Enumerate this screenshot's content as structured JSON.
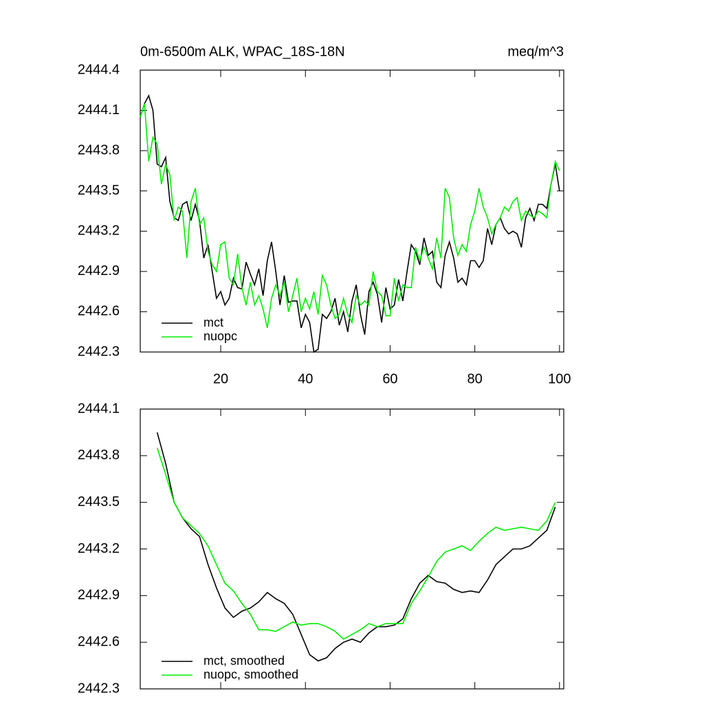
{
  "chart_data": [
    {
      "type": "line",
      "left_title": "0m-6500m ALK, WPAC_18S-18N",
      "right_title": "meq/m^3",
      "x": [
        1,
        2,
        3,
        4,
        5,
        6,
        7,
        8,
        9,
        10,
        11,
        12,
        13,
        14,
        15,
        16,
        17,
        18,
        19,
        20,
        21,
        22,
        23,
        24,
        25,
        26,
        27,
        28,
        29,
        30,
        31,
        32,
        33,
        34,
        35,
        36,
        37,
        38,
        39,
        40,
        41,
        42,
        43,
        44,
        45,
        46,
        47,
        48,
        49,
        50,
        51,
        52,
        53,
        54,
        55,
        56,
        57,
        58,
        59,
        60,
        61,
        62,
        63,
        64,
        65,
        66,
        67,
        68,
        69,
        70,
        71,
        72,
        73,
        74,
        75,
        76,
        77,
        78,
        79,
        80,
        81,
        82,
        83,
        84,
        85,
        86,
        87,
        88,
        89,
        90,
        91,
        92,
        93,
        94,
        95,
        96,
        97,
        98,
        99,
        100
      ],
      "series": [
        {
          "name": "mct",
          "color": "#000000",
          "values": [
            2444.05,
            2444.15,
            2444.21,
            2444.1,
            2443.7,
            2443.68,
            2443.75,
            2443.42,
            2443.3,
            2443.28,
            2443.4,
            2443.42,
            2443.28,
            2443.4,
            2443.28,
            2443.0,
            2443.1,
            2442.9,
            2442.7,
            2442.75,
            2442.65,
            2442.7,
            2442.85,
            2442.78,
            2442.77,
            2442.97,
            2442.88,
            2442.8,
            2442.92,
            2442.72,
            2442.98,
            2443.12,
            2442.9,
            2442.65,
            2442.87,
            2442.67,
            2442.68,
            2442.68,
            2442.48,
            2442.58,
            2442.52,
            2442.3,
            2442.32,
            2442.58,
            2442.55,
            2442.6,
            2442.7,
            2442.5,
            2442.6,
            2442.45,
            2442.68,
            2442.8,
            2442.58,
            2442.43,
            2442.75,
            2442.82,
            2442.73,
            2442.52,
            2442.78,
            2442.62,
            2442.65,
            2442.84,
            2442.68,
            2442.9,
            2443.1,
            2443.05,
            2442.95,
            2443.15,
            2443.02,
            2443.05,
            2442.82,
            2442.78,
            2443.02,
            2443.12,
            2443.0,
            2442.82,
            2442.85,
            2442.8,
            2442.98,
            2442.98,
            2442.93,
            2442.98,
            2443.22,
            2443.1,
            2443.25,
            2443.3,
            2443.22,
            2443.18,
            2443.2,
            2443.18,
            2443.08,
            2443.3,
            2443.37,
            2443.28,
            2443.4,
            2443.4,
            2443.37,
            2443.55,
            2443.7,
            2443.5
          ]
        },
        {
          "name": "nuopc",
          "color": "#00ee00",
          "values": [
            2444.05,
            2444.15,
            2443.72,
            2443.9,
            2443.85,
            2443.55,
            2443.7,
            2443.62,
            2443.28,
            2443.38,
            2443.35,
            2443.0,
            2443.42,
            2443.52,
            2443.25,
            2443.3,
            2443.05,
            2442.95,
            2442.9,
            2443.1,
            2443.12,
            2442.85,
            2442.8,
            2443.03,
            2442.78,
            2442.65,
            2442.82,
            2442.65,
            2442.72,
            2442.62,
            2442.48,
            2442.7,
            2442.8,
            2442.72,
            2442.82,
            2442.6,
            2442.72,
            2442.85,
            2442.6,
            2442.7,
            2442.62,
            2442.75,
            2442.58,
            2442.87,
            2442.8,
            2442.65,
            2442.55,
            2442.58,
            2442.7,
            2442.58,
            2442.52,
            2442.72,
            2442.65,
            2442.68,
            2442.65,
            2442.9,
            2442.75,
            2442.72,
            2442.57,
            2442.57,
            2442.85,
            2442.68,
            2442.8,
            2442.78,
            2442.78,
            2443.08,
            2442.98,
            2443.08,
            2443.0,
            2442.92,
            2443.15,
            2443.0,
            2443.52,
            2443.45,
            2443.15,
            2443.02,
            2443.1,
            2443.05,
            2443.25,
            2443.35,
            2443.52,
            2443.38,
            2443.3,
            2443.18,
            2443.25,
            2443.3,
            2443.38,
            2443.35,
            2443.42,
            2443.45,
            2443.28,
            2443.35,
            2443.32,
            2443.3,
            2443.35,
            2443.33,
            2443.3,
            2443.55,
            2443.72,
            2443.65
          ]
        }
      ],
      "xlim": [
        1,
        101
      ],
      "xticks": [
        20,
        40,
        60,
        80,
        100
      ],
      "ylim": [
        2442.3,
        2444.4
      ],
      "yticks": [
        {
          "value": 2442.3,
          "label": "2442.3"
        },
        {
          "value": 2442.6,
          "label": "2442.6"
        },
        {
          "value": 2442.9,
          "label": "2442.9"
        },
        {
          "value": 2443.2,
          "label": "2443.2"
        },
        {
          "value": 2443.5,
          "label": "2443.5"
        },
        {
          "value": 2443.8,
          "label": "2443.8"
        },
        {
          "value": 2444.1,
          "label": "2444.1"
        },
        {
          "value": 2444.4,
          "label": "2444.4"
        }
      ]
    },
    {
      "type": "line",
      "x": [
        5,
        7,
        9,
        11,
        13,
        15,
        17,
        19,
        21,
        23,
        25,
        27,
        29,
        31,
        33,
        35,
        37,
        39,
        41,
        43,
        45,
        47,
        49,
        51,
        53,
        55,
        57,
        59,
        61,
        63,
        65,
        67,
        69,
        71,
        73,
        75,
        77,
        79,
        81,
        83,
        85,
        87,
        89,
        91,
        93,
        95,
        97,
        99
      ],
      "series": [
        {
          "name": "mct, smoothed",
          "color": "#000000",
          "values": [
            2443.95,
            2443.75,
            2443.5,
            2443.4,
            2443.33,
            2443.28,
            2443.1,
            2442.95,
            2442.82,
            2442.76,
            2442.8,
            2442.82,
            2442.86,
            2442.92,
            2442.88,
            2442.85,
            2442.78,
            2442.65,
            2442.52,
            2442.48,
            2442.5,
            2442.56,
            2442.6,
            2442.62,
            2442.6,
            2442.66,
            2442.7,
            2442.7,
            2442.71,
            2442.75,
            2442.88,
            2442.98,
            2443.03,
            2442.99,
            2442.98,
            2442.94,
            2442.92,
            2442.93,
            2442.92,
            2443.0,
            2443.1,
            2443.15,
            2443.2,
            2443.2,
            2443.22,
            2443.27,
            2443.32,
            2443.47
          ]
        },
        {
          "name": "nuopc, smoothed",
          "color": "#00ee00",
          "values": [
            2443.85,
            2443.68,
            2443.5,
            2443.4,
            2443.35,
            2443.3,
            2443.22,
            2443.1,
            2442.98,
            2442.93,
            2442.85,
            2442.78,
            2442.68,
            2442.68,
            2442.67,
            2442.7,
            2442.73,
            2442.71,
            2442.72,
            2442.72,
            2442.7,
            2442.67,
            2442.62,
            2442.65,
            2442.68,
            2442.72,
            2442.7,
            2442.72,
            2442.72,
            2442.72,
            2442.85,
            2442.93,
            2443.02,
            2443.12,
            2443.18,
            2443.2,
            2443.22,
            2443.19,
            2443.25,
            2443.3,
            2443.34,
            2443.32,
            2443.33,
            2443.34,
            2443.33,
            2443.32,
            2443.38,
            2443.5
          ]
        }
      ],
      "xlim": [
        1,
        101
      ],
      "xticks": [
        20,
        40,
        60,
        80,
        100
      ],
      "ylim": [
        2442.3,
        2444.1
      ],
      "yticks": [
        {
          "value": 2442.3,
          "label": "2442.3"
        },
        {
          "value": 2442.6,
          "label": "2442.6"
        },
        {
          "value": 2442.9,
          "label": "2442.9"
        },
        {
          "value": 2443.2,
          "label": "2443.2"
        },
        {
          "value": 2443.5,
          "label": "2443.5"
        },
        {
          "value": 2443.8,
          "label": "2443.8"
        },
        {
          "value": 2444.1,
          "label": "2444.1"
        }
      ]
    }
  ]
}
